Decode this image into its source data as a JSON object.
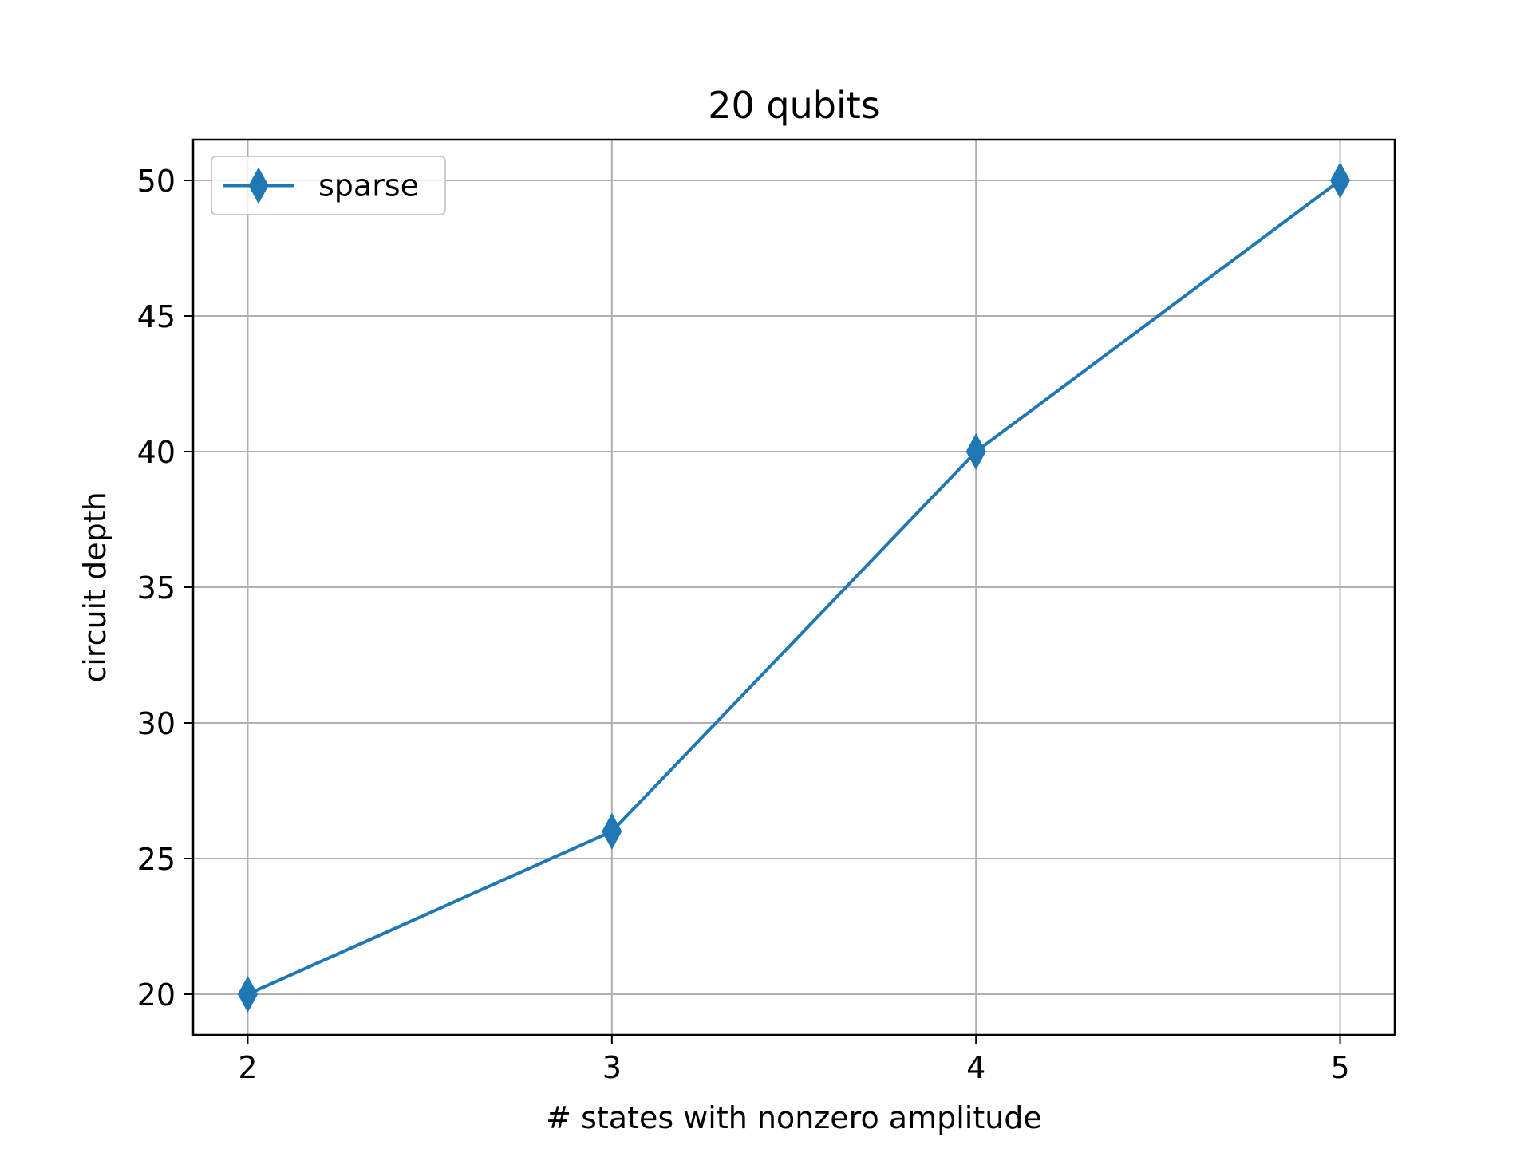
{
  "chart_data": {
    "type": "line",
    "title": "20 qubits",
    "xlabel": "# states with nonzero amplitude",
    "ylabel": "circuit depth",
    "x": [
      2,
      3,
      4,
      5
    ],
    "series": [
      {
        "name": "sparse",
        "values": [
          20,
          26,
          40,
          50
        ],
        "color": "#1f77b4",
        "marker": "thin-diamond"
      }
    ],
    "xlim": [
      1.85,
      5.15
    ],
    "ylim": [
      18.5,
      51.5
    ],
    "xticks": [
      2,
      3,
      4,
      5
    ],
    "yticks": [
      20,
      25,
      30,
      35,
      40,
      45,
      50
    ],
    "grid": true,
    "legend_position": "upper-left"
  }
}
